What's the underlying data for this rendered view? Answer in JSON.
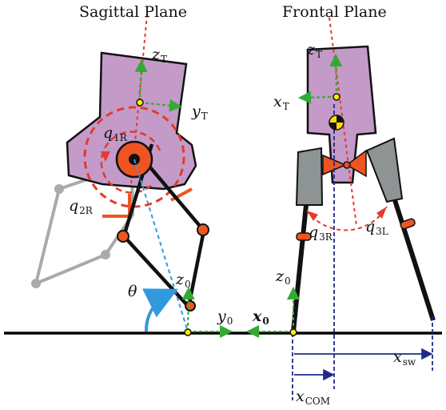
{
  "titles": {
    "sagittal": "Sagittal Plane",
    "frontal": "Frontal Plane"
  },
  "labels": {
    "zT_sag": {
      "main": "z",
      "sub": "T"
    },
    "yT": {
      "main": "y",
      "sub": "T"
    },
    "q1R": {
      "main": "q",
      "sub": "1R"
    },
    "q2R": {
      "main": "q",
      "sub": "2R"
    },
    "theta": {
      "main": "θ",
      "sub": ""
    },
    "z0_sag": {
      "main": "z",
      "sub": "0"
    },
    "y0": {
      "main": "y",
      "sub": "0"
    },
    "zT_front": {
      "main": "z",
      "sub": "T"
    },
    "xT": {
      "main": "x",
      "sub": "T"
    },
    "q3R": {
      "main": "q",
      "sub": "3R"
    },
    "q3L": {
      "main": "q",
      "sub": "3L"
    },
    "z0_front": {
      "main": "z",
      "sub": "0"
    },
    "x0": {
      "main": "x",
      "sub": "0"
    },
    "xsw": {
      "main": "x",
      "sub": "sw"
    },
    "xCOM": {
      "main": "x",
      "sub": "COM"
    }
  },
  "colors": {
    "torso": "#c49ac8",
    "joint": "#ee5522",
    "axis_green": "#33aa33",
    "axis_red": "#e23b2b",
    "dashed_blue": "#1e2a88",
    "theta_arc": "#3399dd",
    "leg_gray": "#aaaaaa",
    "thigh_gray": "#8e9494",
    "ground": "#000000"
  }
}
